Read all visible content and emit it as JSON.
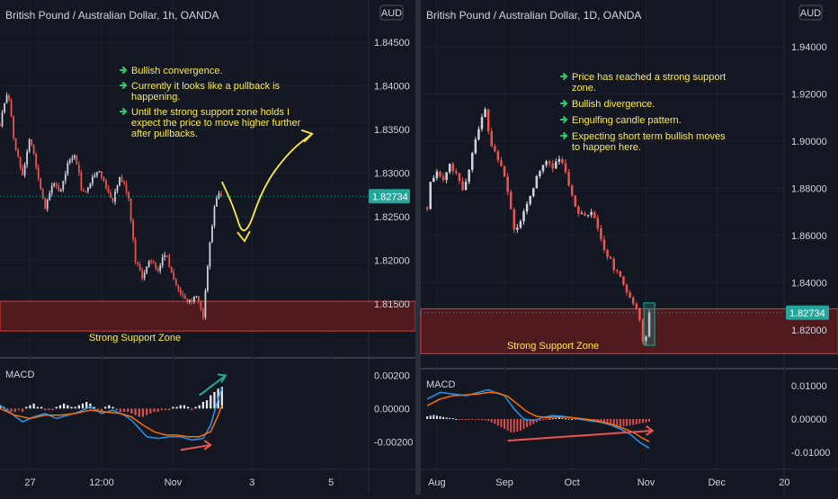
{
  "colors": {
    "background": "#131722",
    "divider": "#2a2e39",
    "grid": "#1c2030",
    "text": "#d1d4dc",
    "up": "#d1d4dc",
    "down": "#ef5350",
    "price_tag_bg": "#26a69a",
    "zone_fill": "#5c1a1d",
    "zone_border": "#e53935",
    "note_text": "#ffeb3b",
    "note_arrow": "#2ecc71",
    "macd_line": "#2196f3",
    "signal_line": "#ff6d00",
    "hist_up": "#ffffff",
    "hist_down": "#ef5350",
    "trend_up": "#26a69a",
    "trend_down": "#ef5350",
    "projection": "#ffeb3b",
    "box": "#26a69a"
  },
  "icons": [
    "note-arrow-icon",
    "projection-arrow-icon"
  ],
  "chart_data": [
    {
      "type": "candlestick",
      "title": "British Pound / Australian Dollar, 1h, OANDA",
      "currency_badge": "AUD",
      "y_ticks": [
        "1.84500",
        "1.84000",
        "1.83500",
        "1.83000",
        "1.82500",
        "1.82000",
        "1.81500"
      ],
      "ylim": [
        1.8115,
        1.8455
      ],
      "x_ticks": [
        {
          "label": "27",
          "index": 8
        },
        {
          "label": "12:00",
          "index": 27
        },
        {
          "label": "Nov",
          "index": 46
        },
        {
          "label": "3",
          "index": 67
        },
        {
          "label": "5",
          "index": 88
        }
      ],
      "index_range": [
        0,
        98
      ],
      "last_price": "1.82734",
      "last_value": 1.82734,
      "close_path": [
        [
          0,
          1.8355
        ],
        [
          2,
          1.8395
        ],
        [
          4,
          1.833
        ],
        [
          6,
          1.83
        ],
        [
          8,
          1.834
        ],
        [
          10,
          1.83
        ],
        [
          12,
          1.826
        ],
        [
          14,
          1.829
        ],
        [
          16,
          1.828
        ],
        [
          18,
          1.831
        ],
        [
          20,
          1.832
        ],
        [
          22,
          1.8275
        ],
        [
          24,
          1.829
        ],
        [
          26,
          1.8305
        ],
        [
          28,
          1.8285
        ],
        [
          30,
          1.827
        ],
        [
          32,
          1.8295
        ],
        [
          34,
          1.8275
        ],
        [
          35,
          1.824
        ],
        [
          36,
          1.82
        ],
        [
          38,
          1.818
        ],
        [
          40,
          1.82
        ],
        [
          42,
          1.819
        ],
        [
          44,
          1.821
        ],
        [
          46,
          1.818
        ],
        [
          48,
          1.816
        ],
        [
          50,
          1.815
        ],
        [
          52,
          1.816
        ],
        [
          54,
          1.8135
        ],
        [
          55,
          1.8185
        ],
        [
          56,
          1.823
        ],
        [
          57,
          1.826
        ],
        [
          58,
          1.8275
        ],
        [
          59,
          1.8273
        ]
      ],
      "support_zone": {
        "label": "Strong Support Zone",
        "from": 1.8119,
        "to": 1.8153
      },
      "notes": [
        "Bullish convergence.",
        "Currently it looks like a pullback is happening.",
        "Until the strong support zone holds I expect the price to move higher further after pullbacks."
      ],
      "projection_path": [
        [
          59,
          1.829
        ],
        [
          62,
          1.8262
        ],
        [
          65,
          1.8222
        ],
        [
          70,
          1.8285
        ],
        [
          77,
          1.8325
        ],
        [
          83,
          1.8345
        ]
      ],
      "macd": {
        "label": "MACD",
        "y_ticks": [
          "0.00200",
          "0.00000",
          "-0.00200"
        ],
        "ylim": [
          -0.0028,
          0.0023
        ],
        "macd_path": [
          [
            0,
            0.0002
          ],
          [
            3,
            -0.0003
          ],
          [
            6,
            -0.0008
          ],
          [
            9,
            -0.0005
          ],
          [
            12,
            -0.0003
          ],
          [
            15,
            -0.0006
          ],
          [
            18,
            -0.0004
          ],
          [
            21,
            -0.0002
          ],
          [
            24,
            0.0001
          ],
          [
            27,
            -0.0003
          ],
          [
            30,
            -0.0001
          ],
          [
            33,
            -0.0004
          ],
          [
            35,
            -0.0007
          ],
          [
            37,
            -0.0012
          ],
          [
            39,
            -0.0017
          ],
          [
            42,
            -0.0018
          ],
          [
            45,
            -0.0017
          ],
          [
            48,
            -0.0017
          ],
          [
            51,
            -0.0019
          ],
          [
            54,
            -0.0018
          ],
          [
            56,
            -0.001
          ],
          [
            58,
            0.0006
          ],
          [
            59,
            0.0012
          ]
        ],
        "signal_path": [
          [
            0,
            0.0
          ],
          [
            4,
            -0.0004
          ],
          [
            8,
            -0.0006
          ],
          [
            12,
            -0.0004
          ],
          [
            16,
            -0.0004
          ],
          [
            20,
            -0.0003
          ],
          [
            24,
            -0.0001
          ],
          [
            28,
            -0.0002
          ],
          [
            32,
            -0.0003
          ],
          [
            35,
            -0.0005
          ],
          [
            38,
            -0.001
          ],
          [
            41,
            -0.0014
          ],
          [
            44,
            -0.0016
          ],
          [
            47,
            -0.0016
          ],
          [
            50,
            -0.0017
          ],
          [
            53,
            -0.0017
          ],
          [
            56,
            -0.0014
          ],
          [
            58,
            -0.0004
          ],
          [
            59,
            0.0002
          ]
        ],
        "histogram": [
          0.0002,
          0.0001,
          -0.0001,
          -0.0002,
          -0.0002,
          -0.0001,
          -0.0002,
          0.0001,
          0.0002,
          0.0003,
          0.0001,
          0.0001,
          -0.0001,
          -0.0001,
          -0.0001,
          0.0001,
          0.0002,
          0.0003,
          0.0002,
          0.0001,
          0.0001,
          0.0002,
          0.0003,
          0.0004,
          0.0003,
          0.0001,
          -0.0001,
          -0.0002,
          0.0001,
          0.0002,
          0.0001,
          -0.0001,
          -0.0002,
          -0.0002,
          -0.0002,
          -0.0003,
          -0.0004,
          -0.0005,
          -0.0005,
          -0.0004,
          -0.0003,
          -0.0002,
          -0.0002,
          -0.0001,
          -0.0001,
          -0.0001,
          0.0001,
          0.0001,
          0.0002,
          0.0002,
          0.0001,
          -0.0001,
          0.0001,
          0.0002,
          0.0004,
          0.0005,
          0.0008,
          0.001,
          0.0012,
          0.0013
        ],
        "trend_up": [
          [
            53,
            0.0008
          ],
          [
            60,
            0.002
          ]
        ],
        "trend_down": [
          [
            48,
            -0.0025
          ],
          [
            56,
            -0.0022
          ]
        ]
      }
    },
    {
      "type": "candlestick",
      "title": "British Pound / Australian Dollar, 1D, OANDA",
      "currency_badge": "AUD",
      "y_ticks": [
        "1.94000",
        "1.92000",
        "1.90000",
        "1.88000",
        "1.86000",
        "1.84000",
        "1.82000"
      ],
      "ylim": [
        1.8105,
        1.943
      ],
      "x_ticks": [
        {
          "label": "Aug",
          "index": 3
        },
        {
          "label": "Sep",
          "index": 24
        },
        {
          "label": "Oct",
          "index": 45
        },
        {
          "label": "Nov",
          "index": 68
        },
        {
          "label": "Dec",
          "index": 90
        },
        {
          "label": "20",
          "index": 111
        }
      ],
      "index_range": [
        -2,
        112
      ],
      "last_price": "1.82734",
      "last_value": 1.82734,
      "close_path": [
        [
          0,
          1.872
        ],
        [
          1,
          1.882
        ],
        [
          3,
          1.887
        ],
        [
          5,
          1.883
        ],
        [
          7,
          1.89
        ],
        [
          9,
          1.886
        ],
        [
          11,
          1.88
        ],
        [
          13,
          1.888
        ],
        [
          15,
          1.9
        ],
        [
          17,
          1.91
        ],
        [
          18,
          1.914
        ],
        [
          19,
          1.905
        ],
        [
          20,
          1.898
        ],
        [
          22,
          1.892
        ],
        [
          24,
          1.885
        ],
        [
          25,
          1.878
        ],
        [
          27,
          1.862
        ],
        [
          28,
          1.864
        ],
        [
          30,
          1.87
        ],
        [
          31,
          1.874
        ],
        [
          33,
          1.88
        ],
        [
          35,
          1.888
        ],
        [
          37,
          1.891
        ],
        [
          39,
          1.889
        ],
        [
          41,
          1.893
        ],
        [
          43,
          1.888
        ],
        [
          44,
          1.88
        ],
        [
          45,
          1.876
        ],
        [
          47,
          1.87
        ],
        [
          49,
          1.869
        ],
        [
          51,
          1.87
        ],
        [
          53,
          1.864
        ],
        [
          55,
          1.854
        ],
        [
          57,
          1.849
        ],
        [
          59,
          1.844
        ],
        [
          61,
          1.839
        ],
        [
          63,
          1.834
        ],
        [
          65,
          1.829
        ],
        [
          66,
          1.824
        ],
        [
          67,
          1.815
        ],
        [
          68,
          1.818
        ],
        [
          69,
          1.8273
        ]
      ],
      "support_zone": {
        "label": "Strong Support Zone",
        "from": 1.81,
        "to": 1.829
      },
      "notes": [
        "Price has reached a strong support zone.",
        "Bullish divergence.",
        "Engulfing candle pattern.",
        "Expecting short term bullish moves to happen here."
      ],
      "box_range": {
        "from": 1.8135,
        "to": 1.8315
      },
      "macd": {
        "label": "MACD",
        "y_ticks": [
          "0.01000",
          "0.00000",
          "-0.01000"
        ],
        "ylim": [
          -0.0135,
          0.0135
        ],
        "macd_path": [
          [
            0,
            0.006
          ],
          [
            4,
            0.008
          ],
          [
            8,
            0.0075
          ],
          [
            12,
            0.007
          ],
          [
            16,
            0.008
          ],
          [
            19,
            0.0088
          ],
          [
            21,
            0.008
          ],
          [
            24,
            0.007
          ],
          [
            27,
            0.003
          ],
          [
            30,
            0.0
          ],
          [
            33,
            -0.0005
          ],
          [
            36,
            0.0005
          ],
          [
            39,
            0.001
          ],
          [
            42,
            0.0008
          ],
          [
            45,
            0.0004
          ],
          [
            48,
            -0.0002
          ],
          [
            51,
            -0.0006
          ],
          [
            54,
            -0.001
          ],
          [
            57,
            -0.0018
          ],
          [
            60,
            -0.003
          ],
          [
            63,
            -0.0045
          ],
          [
            66,
            -0.007
          ],
          [
            69,
            -0.0088
          ]
        ],
        "signal_path": [
          [
            0,
            0.004
          ],
          [
            4,
            0.006
          ],
          [
            8,
            0.007
          ],
          [
            12,
            0.0072
          ],
          [
            16,
            0.0075
          ],
          [
            19,
            0.008
          ],
          [
            22,
            0.0078
          ],
          [
            25,
            0.0068
          ],
          [
            28,
            0.0045
          ],
          [
            31,
            0.0022
          ],
          [
            34,
            0.0008
          ],
          [
            37,
            0.0004
          ],
          [
            40,
            0.0006
          ],
          [
            43,
            0.0006
          ],
          [
            46,
            0.0003
          ],
          [
            49,
            0.0
          ],
          [
            52,
            -0.0004
          ],
          [
            55,
            -0.001
          ],
          [
            58,
            -0.0018
          ],
          [
            61,
            -0.0028
          ],
          [
            64,
            -0.004
          ],
          [
            67,
            -0.0058
          ],
          [
            69,
            -0.0068
          ]
        ],
        "histogram": [
          0.0008,
          0.001,
          0.0012,
          0.001,
          0.0008,
          0.0006,
          0.0004,
          0.0003,
          0.0002,
          0.0,
          -0.0001,
          -0.0002,
          -0.0003,
          -0.0002,
          -0.0001,
          -0.0001,
          -0.0002,
          -0.0003,
          -0.0004,
          -0.0006,
          -0.001,
          -0.0015,
          -0.002,
          -0.0025,
          -0.003,
          -0.0035,
          -0.004,
          -0.004,
          -0.0038,
          -0.0035,
          -0.003,
          -0.0025,
          -0.002,
          -0.0015,
          -0.001,
          -0.0006,
          -0.0003,
          -0.0001,
          0.0001,
          0.0002,
          0.0003,
          0.0004,
          0.0003,
          0.0002,
          0.0001,
          0.0,
          -0.0001,
          -0.0002,
          -0.0003,
          -0.0004,
          -0.0005,
          -0.0006,
          -0.0008,
          -0.001,
          -0.0012,
          -0.0014,
          -0.0016,
          -0.0018,
          -0.002,
          -0.0021,
          -0.0022,
          -0.0022,
          -0.0021,
          -0.002,
          -0.0018,
          -0.0016,
          -0.0014,
          -0.0012,
          -0.001,
          -0.0008
        ],
        "trend_down": [
          [
            25,
            -0.0065
          ],
          [
            70,
            -0.0035
          ]
        ]
      }
    }
  ]
}
